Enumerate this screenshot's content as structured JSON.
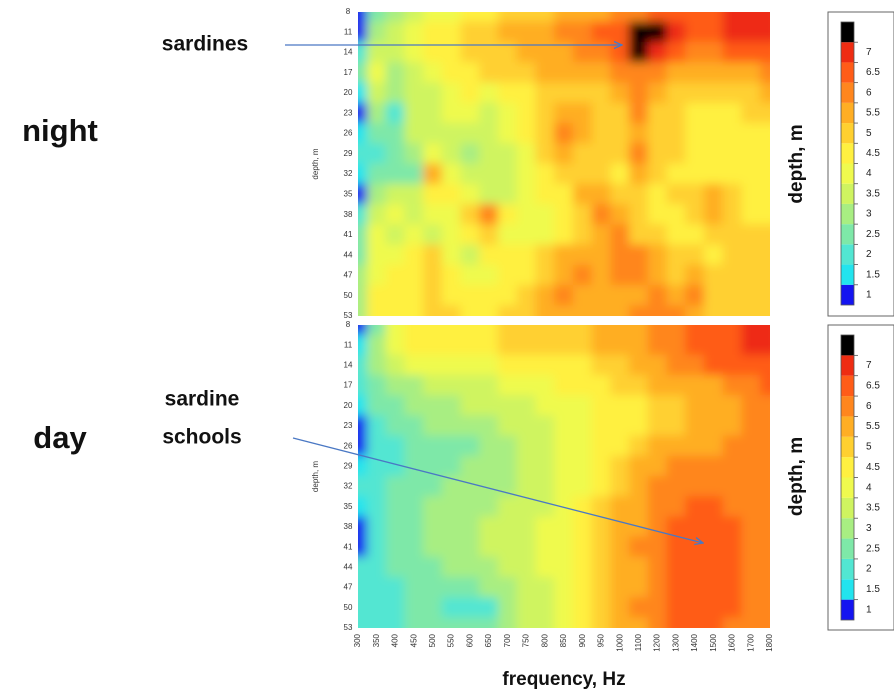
{
  "chart_data": [
    {
      "type": "heatmap",
      "label": "night",
      "annotation": [
        "sardines"
      ],
      "ylabel": "depth, m",
      "colorbar_label": "depth, m",
      "show_xticks": false,
      "x": [
        300,
        350,
        400,
        450,
        500,
        550,
        600,
        650,
        700,
        750,
        800,
        850,
        900,
        950,
        1000,
        1100,
        1200,
        1300,
        1400,
        1500,
        1600,
        1700,
        1800
      ],
      "y": [
        8,
        11,
        14,
        17,
        20,
        23,
        26,
        29,
        32,
        35,
        38,
        41,
        44,
        47,
        50,
        53
      ],
      "z": [
        [
          0.8,
          2,
          2.5,
          3,
          3.5,
          3.8,
          4,
          4.2,
          4.5,
          4.6,
          4.8,
          5,
          5.2,
          5.4,
          5.6,
          5.8,
          6,
          6,
          6.2,
          6.4,
          6.5,
          6.6,
          6.8
        ],
        [
          0.8,
          2.5,
          3,
          3.5,
          4,
          4.2,
          4.5,
          4.8,
          5,
          5.2,
          5.4,
          5.6,
          5.8,
          6,
          6.2,
          7.5,
          7.5,
          6.5,
          6.4,
          6.4,
          6.5,
          6.6,
          6.8
        ],
        [
          1.5,
          3,
          3,
          3.5,
          4,
          4.2,
          4.5,
          4.6,
          4.8,
          5,
          5.2,
          5.4,
          5.6,
          5.8,
          6,
          7.2,
          6.5,
          6,
          5.8,
          5.8,
          6,
          6,
          6.2
        ],
        [
          2,
          3.5,
          2.5,
          3,
          3.5,
          4,
          4.2,
          4.5,
          4.6,
          4.8,
          5,
          5,
          5,
          5.2,
          5.5,
          5.8,
          5.5,
          5,
          5,
          5,
          5,
          5.2,
          5.5
        ],
        [
          1.2,
          3,
          2.5,
          3,
          3.2,
          3.8,
          4,
          3.8,
          4,
          4.2,
          4.5,
          4.8,
          4.6,
          4.8,
          5,
          5.5,
          5,
          4.8,
          4.5,
          4.5,
          4.6,
          4.8,
          5
        ],
        [
          0.8,
          2.5,
          1.5,
          3,
          3,
          3.5,
          3.5,
          3.2,
          3.5,
          4,
          4.5,
          5.2,
          5,
          4.5,
          4.8,
          5.5,
          4.8,
          4.5,
          4.2,
          4.2,
          4.4,
          4.5,
          4.6
        ],
        [
          1.2,
          2,
          2.2,
          3,
          3,
          3.2,
          3,
          3,
          3.5,
          4,
          4.8,
          5.5,
          5,
          4.6,
          4.5,
          5.2,
          4.6,
          4.8,
          4.2,
          4,
          4.2,
          4.4,
          4.4
        ],
        [
          1.5,
          1.8,
          2,
          2.5,
          3.5,
          3,
          2.8,
          3,
          3.2,
          3.8,
          4.5,
          5,
          4.8,
          4.5,
          4.5,
          5.5,
          4.8,
          4.5,
          4.2,
          4,
          4,
          4.2,
          4.2
        ],
        [
          1.2,
          2,
          2,
          2.2,
          5,
          3.5,
          3,
          3.2,
          3,
          3.5,
          4,
          4.5,
          4.8,
          4.5,
          4.2,
          5,
          4.5,
          4.2,
          4.2,
          4,
          4,
          4,
          4.2
        ],
        [
          0.8,
          2.5,
          3,
          3,
          4,
          4,
          3.5,
          3.2,
          3,
          3.5,
          4,
          4.2,
          5,
          5,
          4.8,
          4.5,
          4.2,
          4.5,
          4.5,
          5,
          4.5,
          4.2,
          4.2
        ],
        [
          1.5,
          3,
          3.5,
          3,
          3.5,
          3.8,
          4.5,
          5.5,
          4,
          3.5,
          3.8,
          4.2,
          4.5,
          5.5,
          5,
          4.8,
          4.2,
          4,
          4.5,
          5,
          4.5,
          4,
          4
        ],
        [
          2,
          3.5,
          3,
          3.5,
          3.2,
          3.5,
          4,
          4.5,
          3.5,
          3.5,
          3.8,
          4.2,
          4.5,
          5,
          5.5,
          4.8,
          4.5,
          4.2,
          4.2,
          4.5,
          4.8,
          4.5,
          4.5
        ],
        [
          2.2,
          3.5,
          3.5,
          4,
          4.5,
          3.5,
          3.2,
          4,
          4,
          4.2,
          4.5,
          5,
          5.2,
          5,
          5.5,
          5.8,
          5,
          4.5,
          4.5,
          4.2,
          4.5,
          4.8,
          4.8
        ],
        [
          2.5,
          3.8,
          4,
          4,
          4.5,
          4,
          3.5,
          3.8,
          4,
          4.2,
          4.5,
          5.2,
          5.5,
          5.2,
          5.5,
          5.5,
          5.2,
          4.8,
          5,
          4.5,
          4.5,
          4.8,
          4.8
        ],
        [
          2.5,
          4,
          4,
          4.2,
          4.5,
          4.2,
          4,
          4,
          4.2,
          4.5,
          5,
          5.5,
          5.2,
          5,
          5.2,
          5.2,
          5.5,
          5,
          5.5,
          4.8,
          4.5,
          4.6,
          4.6
        ],
        [
          2.8,
          4,
          4.2,
          4.2,
          4.5,
          4.5,
          4.2,
          4.2,
          4.5,
          4.8,
          5,
          5.2,
          5.2,
          5,
          5.2,
          5.5,
          5.8,
          5.5,
          5,
          4.8,
          4.6,
          4.6,
          4.6
        ]
      ],
      "colorbar": {
        "ticks": [
          1,
          1.5,
          2,
          2.5,
          3,
          3.5,
          4,
          4.5,
          5,
          5.5,
          6,
          6.5,
          7
        ],
        "colors": [
          "#1414f0",
          "#22e4ee",
          "#52e6d2",
          "#7ee8a8",
          "#a8ee82",
          "#cff460",
          "#effa4e",
          "#fff040",
          "#ffd030",
          "#ffae24",
          "#ff861e",
          "#ff5c18",
          "#ee2c12",
          "#000000"
        ]
      }
    },
    {
      "type": "heatmap",
      "label": "day",
      "annotation": [
        "sardine",
        "schools"
      ],
      "ylabel": "depth, m",
      "colorbar_label": "depth, m",
      "xlabel": "frequency, Hz",
      "show_xticks": true,
      "x": [
        300,
        350,
        400,
        450,
        500,
        550,
        600,
        650,
        700,
        750,
        800,
        850,
        900,
        950,
        1000,
        1100,
        1200,
        1300,
        1400,
        1500,
        1600,
        1700,
        1800
      ],
      "y": [
        8,
        11,
        14,
        17,
        20,
        23,
        26,
        29,
        32,
        35,
        38,
        41,
        44,
        47,
        50,
        53
      ],
      "z": [
        [
          0.8,
          2,
          3.5,
          4,
          4.2,
          4.2,
          4.3,
          4.4,
          4.5,
          4.6,
          4.7,
          4.8,
          4.9,
          5,
          5.2,
          5.4,
          5.6,
          5.8,
          6,
          6.2,
          6.4,
          6.5,
          6.6
        ],
        [
          1.2,
          2.5,
          3.5,
          4,
          4.2,
          4.2,
          4.3,
          4.4,
          4.5,
          4.6,
          4.6,
          4.7,
          4.8,
          5,
          5.2,
          5.4,
          5.6,
          5.8,
          6,
          6.2,
          6.4,
          6.5,
          6.6
        ],
        [
          1.8,
          2.5,
          3,
          3.5,
          3.8,
          3.8,
          3.8,
          3.8,
          4,
          4,
          4.2,
          4.3,
          4.4,
          4.5,
          4.8,
          5,
          5.2,
          5.5,
          5.8,
          6,
          6.2,
          6.3,
          6.4
        ],
        [
          1.8,
          2.2,
          2.5,
          2.8,
          3,
          3.2,
          3.3,
          3.4,
          3.5,
          3.6,
          3.8,
          4,
          4.2,
          4.4,
          4.6,
          4.8,
          5,
          5,
          5.2,
          5.3,
          5.5,
          5.7,
          6
        ],
        [
          1.2,
          2,
          2.2,
          2.5,
          2.8,
          2.8,
          3,
          3,
          3.2,
          3.3,
          3.5,
          3.7,
          3.9,
          4,
          4.2,
          4.4,
          4.6,
          4.8,
          5,
          5.2,
          5.4,
          5.6,
          5.8
        ],
        [
          0.8,
          1.8,
          2,
          2.2,
          2.5,
          2.5,
          2.5,
          2.8,
          3,
          3.2,
          3.4,
          3.6,
          3.8,
          4,
          4.2,
          4.4,
          4.6,
          4.8,
          5,
          5.2,
          5.4,
          5.6,
          5.8
        ],
        [
          0.6,
          1.5,
          1.8,
          2,
          2.2,
          2.2,
          2.2,
          2.5,
          2.8,
          3,
          3.2,
          3.5,
          3.8,
          4,
          4.3,
          4.6,
          5,
          5.2,
          5.3,
          5.4,
          5.5,
          5.6,
          5.8
        ],
        [
          1.2,
          1.5,
          1.8,
          2,
          2.2,
          2.2,
          2.5,
          2.5,
          2.8,
          3,
          3.2,
          3.5,
          3.8,
          4.2,
          4.6,
          5,
          5.3,
          5.5,
          5.6,
          5.6,
          5.6,
          5.7,
          5.8
        ],
        [
          1.5,
          1.8,
          2,
          2.2,
          2.3,
          2.5,
          2.5,
          2.6,
          2.8,
          3,
          3.2,
          3.5,
          3.8,
          4.3,
          4.8,
          5.2,
          5.5,
          5.6,
          5.8,
          5.8,
          5.8,
          5.8,
          5.8
        ],
        [
          1,
          1.8,
          2,
          2.2,
          2.5,
          2.5,
          2.6,
          2.8,
          3,
          3.2,
          3.4,
          3.6,
          4,
          4.5,
          5,
          5.3,
          5.6,
          5.8,
          6,
          6,
          5.8,
          5.8,
          5.8
        ],
        [
          0.8,
          1.8,
          2,
          2.3,
          2.5,
          2.6,
          2.8,
          3,
          3,
          3.2,
          3.5,
          3.8,
          4.2,
          4.6,
          5,
          5.4,
          5.8,
          6,
          6.2,
          6.2,
          6,
          5.8,
          5.8
        ],
        [
          0.8,
          1.8,
          2,
          2.3,
          2.5,
          2.6,
          2.8,
          3,
          3,
          3.2,
          3.5,
          3.8,
          4.2,
          4.6,
          5,
          5.5,
          5.8,
          6,
          6.2,
          6.2,
          6,
          5.8,
          5.8
        ],
        [
          1.5,
          1.8,
          2,
          2.2,
          2.3,
          2.5,
          2.6,
          2.8,
          3,
          3.2,
          3.5,
          3.8,
          4.2,
          4.6,
          5,
          5.4,
          5.8,
          6,
          6.3,
          6.2,
          6,
          5.8,
          5.8
        ],
        [
          1.5,
          1.8,
          1.9,
          2,
          2.2,
          2.2,
          2.3,
          2.5,
          2.8,
          3,
          3.4,
          3.8,
          4.2,
          4.6,
          5,
          5.4,
          5.8,
          6.2,
          6.3,
          6.2,
          6,
          5.8,
          5.8
        ],
        [
          1.5,
          1.8,
          1.8,
          2,
          2,
          1.8,
          1.5,
          1.8,
          2.5,
          3,
          3.4,
          3.8,
          4.2,
          4.6,
          5,
          5.5,
          5.8,
          6,
          6.2,
          6,
          6,
          5.8,
          5.8
        ],
        [
          1.5,
          1.8,
          1.8,
          2,
          2,
          2,
          2,
          2.2,
          2.5,
          3,
          3.4,
          3.8,
          4.2,
          4.6,
          5,
          5.4,
          5.8,
          6,
          6,
          6,
          5.8,
          5.8,
          5.8
        ]
      ],
      "colorbar": {
        "ticks": [
          1,
          1.5,
          2,
          2.5,
          3,
          3.5,
          4,
          4.5,
          5,
          5.5,
          6,
          6.5,
          7
        ],
        "colors": [
          "#1414f0",
          "#22e4ee",
          "#52e6d2",
          "#7ee8a8",
          "#a8ee82",
          "#cff460",
          "#effa4e",
          "#fff040",
          "#ffd030",
          "#ffae24",
          "#ff861e",
          "#ff5c18",
          "#ee2c12",
          "#000000"
        ]
      }
    }
  ]
}
